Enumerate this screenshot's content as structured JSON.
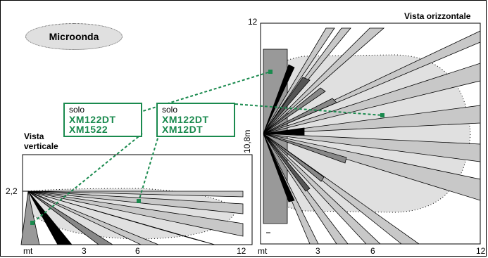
{
  "mode_label": "Microonda",
  "horizontal_view": {
    "title": "Vista orizzontale",
    "y_top_tick": "12",
    "y_side_label": "10,8m",
    "x_ticks": [
      "mt",
      "3",
      "6",
      "12"
    ]
  },
  "vertical_view": {
    "title_line1": "Vista",
    "title_line2": "verticale",
    "y_tick": "2,2",
    "x_ticks": [
      "mt",
      "3",
      "6",
      "12"
    ]
  },
  "badges": [
    {
      "prefix": "solo",
      "models": [
        "XM122DT",
        "XM1522"
      ]
    },
    {
      "prefix": "solo",
      "models": [
        "XM122DT",
        "XM12DT"
      ]
    }
  ],
  "colors": {
    "accent_green": "#1a8a4e",
    "zone_fill": "#e0e0e0"
  }
}
